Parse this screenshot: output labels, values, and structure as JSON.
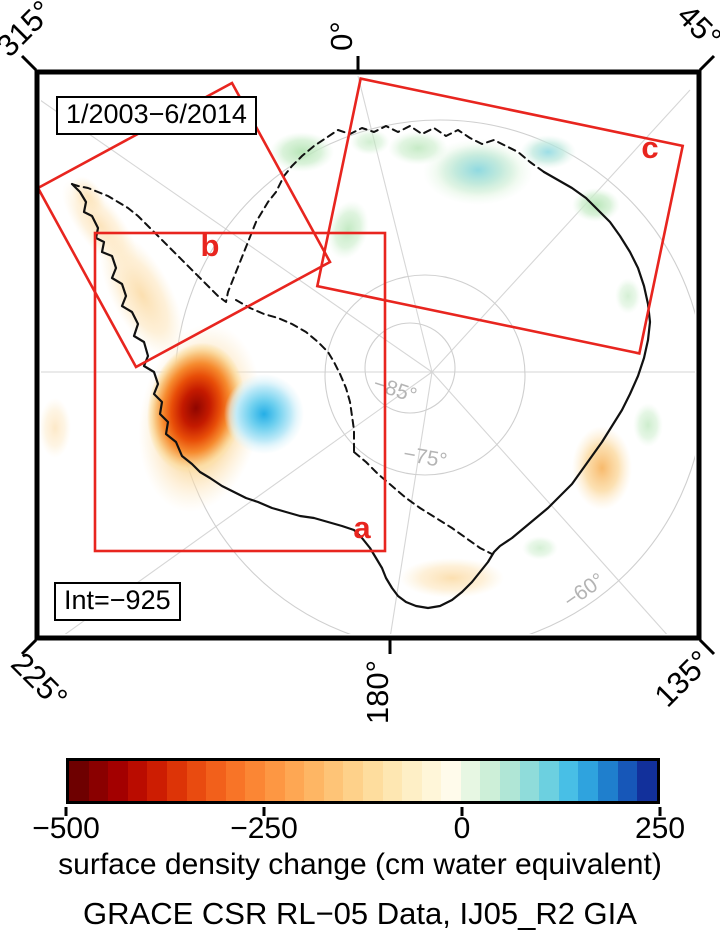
{
  "map": {
    "date_label": "1/2003−6/2014",
    "int_label": "Int=−925",
    "meridian_labels": {
      "top_left": "315°",
      "top_center": "0°",
      "top_right": "45°",
      "bottom_left": "225°",
      "bottom_center": "180°",
      "bottom_right": "135°"
    },
    "latitude_labels": [
      "−85°",
      "−75°",
      "−60°"
    ],
    "regions": [
      {
        "label": "a"
      },
      {
        "label": "b"
      },
      {
        "label": "c"
      }
    ],
    "region_box_color": "#e8251f",
    "coastline_color": "#111111",
    "graticule_color": "#d2d2d2"
  },
  "colorbar": {
    "ticks": [
      "−500",
      "−250",
      "0",
      "250"
    ],
    "tick_values": [
      -500,
      -250,
      0,
      250
    ],
    "range": [
      -500,
      250
    ],
    "units": "cm water equivalent",
    "colors": [
      "#6e0000",
      "#8a0000",
      "#a30000",
      "#ba0c00",
      "#cd1d02",
      "#dd3407",
      "#e94b10",
      "#f2601b",
      "#f87427",
      "#fb8634",
      "#fd9743",
      "#fea753",
      "#feb664",
      "#fec477",
      "#fed18a",
      "#fedd9e",
      "#fee7b2",
      "#feefc6",
      "#fff6d9",
      "#fffbeb",
      "#e7f7e3",
      "#cdefd8",
      "#b0e6d6",
      "#8fdcda",
      "#6cd0e0",
      "#48bfe6",
      "#2fa3de",
      "#1f7fcd",
      "#1757b8",
      "#12309b"
    ]
  },
  "caption": "surface density change (cm water equivalent)",
  "credit": "GRACE CSR RL−05 Data, IJ05_R2 GIA"
}
